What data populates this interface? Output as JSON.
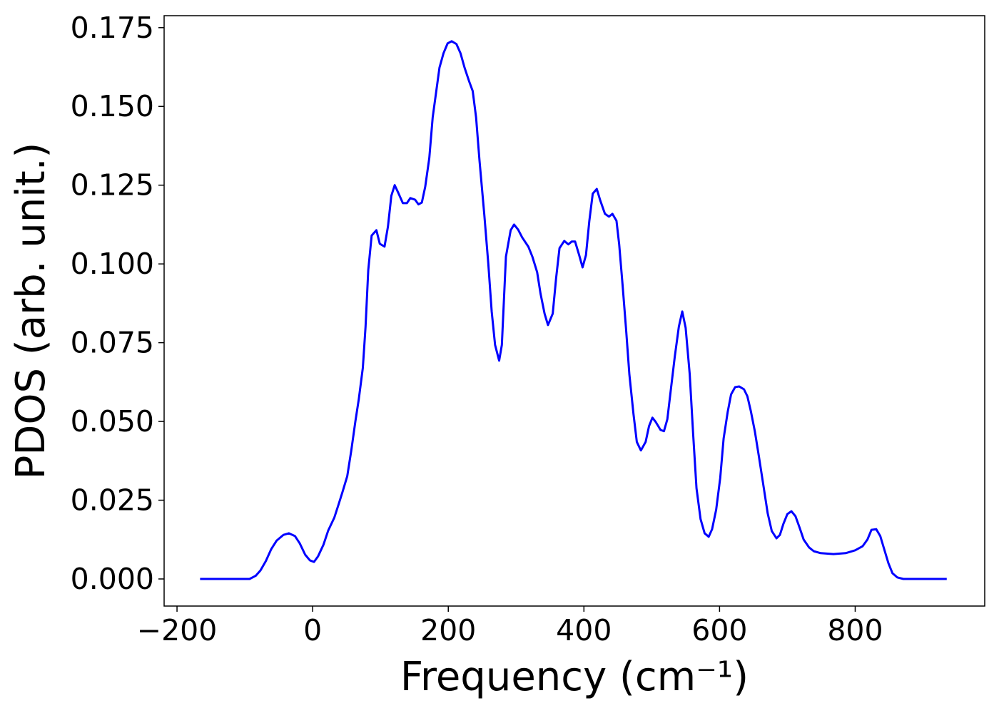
{
  "chart_data": {
    "type": "line",
    "xlabel": "Frequency (cm⁻¹)",
    "ylabel": "PDOS (arb. unit.)",
    "xlim": [
      -219,
      991
    ],
    "ylim": [
      -0.0086,
      0.1788
    ],
    "xticks": [
      {
        "value": -200,
        "label": "−200"
      },
      0,
      200,
      400,
      600,
      800
    ],
    "yticks": [
      {
        "value": 0,
        "label": "0.000"
      },
      {
        "value": 0.025,
        "label": "0.025"
      },
      {
        "value": 0.05,
        "label": "0.050"
      },
      {
        "value": 0.075,
        "label": "0.075"
      },
      {
        "value": 0.1,
        "label": "0.100"
      },
      {
        "value": 0.125,
        "label": "0.125"
      },
      {
        "value": 0.15,
        "label": "0.150"
      },
      {
        "value": 0.175,
        "label": "0.175"
      }
    ],
    "series": [
      {
        "color": "#0000ff",
        "x": [
          -166,
          -93,
          -84,
          -77,
          -69,
          -61,
          -53,
          -43,
          -35,
          -26,
          -19,
          -11,
          -4,
          2,
          8,
          16,
          23,
          32,
          38,
          44,
          51,
          57,
          63,
          68,
          74,
          78,
          82,
          87,
          94,
          99,
          106,
          111,
          116,
          121,
          126,
          133,
          139,
          144,
          151,
          156,
          161,
          166,
          172,
          177,
          182,
          187,
          193,
          199,
          205,
          212,
          218,
          224,
          231,
          236,
          241,
          246,
          253,
          259,
          264,
          269,
          275,
          279,
          285,
          292,
          297,
          303,
          309,
          318,
          324,
          331,
          336,
          342,
          347,
          354,
          359,
          364,
          371,
          377,
          382,
          387,
          393,
          398,
          403,
          408,
          413,
          419,
          424,
          431,
          437,
          442,
          448,
          452,
          457,
          462,
          467,
          473,
          478,
          484,
          491,
          496,
          501,
          506,
          513,
          518,
          523,
          528,
          534,
          540,
          545,
          550,
          556,
          561,
          566,
          572,
          578,
          584,
          589,
          595,
          601,
          606,
          612,
          617,
          623,
          629,
          636,
          641,
          646,
          652,
          658,
          664,
          671,
          677,
          684,
          689,
          694,
          700,
          706,
          712,
          718,
          724,
          732,
          739,
          749,
          768,
          786,
          800,
          811,
          818,
          824,
          831,
          837,
          842,
          849,
          855,
          862,
          871,
          935
        ],
        "values": [
          0,
          0,
          0.001,
          0.0027,
          0.0057,
          0.0095,
          0.0122,
          0.014,
          0.0145,
          0.0136,
          0.0113,
          0.0077,
          0.0059,
          0.0054,
          0.0072,
          0.0109,
          0.0154,
          0.0195,
          0.0235,
          0.0276,
          0.0326,
          0.0408,
          0.05,
          0.057,
          0.067,
          0.08,
          0.098,
          0.109,
          0.1107,
          0.1064,
          0.1055,
          0.1118,
          0.1216,
          0.125,
          0.1227,
          0.1193,
          0.1193,
          0.1209,
          0.1204,
          0.1189,
          0.1195,
          0.1245,
          0.1336,
          0.1465,
          0.1544,
          0.1623,
          0.1669,
          0.17,
          0.1707,
          0.1698,
          0.1669,
          0.1623,
          0.1578,
          0.1549,
          0.1465,
          0.1329,
          0.1159,
          0.1001,
          0.0849,
          0.0743,
          0.0693,
          0.0743,
          0.1023,
          0.1107,
          0.1125,
          0.1109,
          0.1084,
          0.1055,
          0.1023,
          0.0974,
          0.0906,
          0.0842,
          0.0806,
          0.0842,
          0.0955,
          0.105,
          0.1073,
          0.1062,
          0.1071,
          0.1071,
          0.1028,
          0.0989,
          0.1028,
          0.1137,
          0.1223,
          0.1238,
          0.1202,
          0.1159,
          0.115,
          0.1159,
          0.1137,
          0.1062,
          0.0933,
          0.0797,
          0.065,
          0.0525,
          0.0435,
          0.0408,
          0.0435,
          0.0485,
          0.0512,
          0.0498,
          0.0473,
          0.0469,
          0.0507,
          0.0598,
          0.0706,
          0.0801,
          0.0849,
          0.0797,
          0.065,
          0.0462,
          0.0288,
          0.019,
          0.0145,
          0.0134,
          0.0158,
          0.022,
          0.0321,
          0.0446,
          0.053,
          0.0586,
          0.0609,
          0.0611,
          0.0602,
          0.058,
          0.0534,
          0.0469,
          0.0389,
          0.0306,
          0.0208,
          0.0152,
          0.0129,
          0.014,
          0.0174,
          0.0206,
          0.0215,
          0.0199,
          0.0163,
          0.0125,
          0.01,
          0.0088,
          0.0082,
          0.0079,
          0.0082,
          0.0091,
          0.0104,
          0.0125,
          0.0156,
          0.0158,
          0.0136,
          0.01,
          0.005,
          0.0018,
          0.0005,
          0,
          0
        ]
      }
    ]
  }
}
